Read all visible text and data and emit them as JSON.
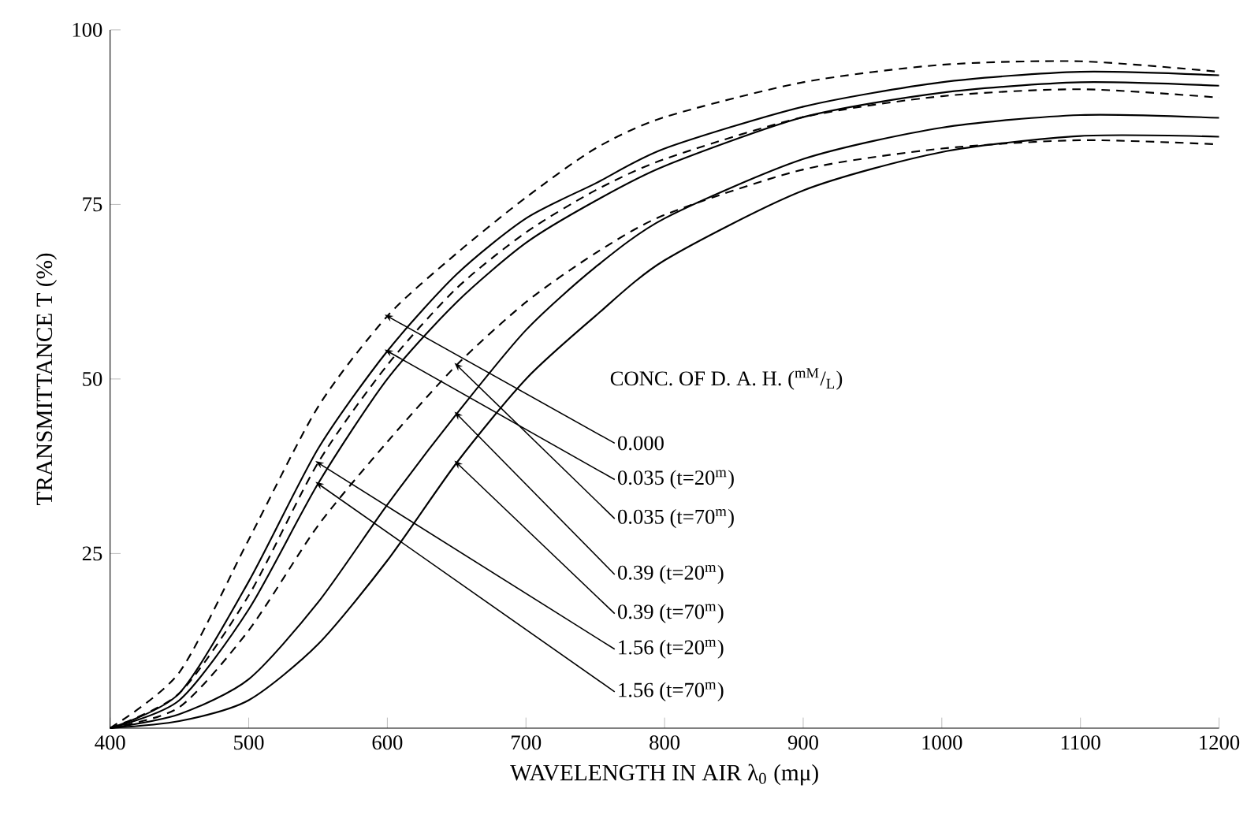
{
  "chart_data": {
    "type": "line",
    "xlabel": "WAVELENGTH IN AIR λ$_{0}$ (mμ)",
    "ylabel": "TRANSMITTANCE T (%)",
    "legend_title": "CONC. OF D. A. H. ($^{mM}$/$_{L}$)",
    "x": [
      400,
      450,
      500,
      550,
      600,
      650,
      700,
      750,
      800,
      900,
      1000,
      1100,
      1200
    ],
    "xlim": [
      400,
      1200
    ],
    "ylim": [
      0,
      100
    ],
    "xticks": [
      400,
      500,
      600,
      700,
      800,
      900,
      1000,
      1100,
      1200
    ],
    "yticks": [
      25,
      50,
      75,
      100
    ],
    "series": [
      {
        "name": "0.000",
        "color": "#000000",
        "line_style": "dashed",
        "values": [
          0,
          8,
          27,
          46,
          59,
          68,
          76,
          83,
          87.5,
          92.5,
          95,
          95.5,
          94
        ]
      },
      {
        "name": "0.035 (t=20$^{m}$)",
        "color": "#000000",
        "line_style": "solid",
        "values": [
          0,
          5,
          21,
          40,
          54,
          65,
          73,
          78,
          83,
          89,
          92.5,
          94,
          93.5
        ]
      },
      {
        "name": "0.035 (t=70$^{m}$)",
        "color": "#000000",
        "line_style": "dashed",
        "values": [
          0,
          3,
          14,
          29,
          41,
          52,
          61,
          68,
          73.5,
          80,
          83,
          84.2,
          83.6
        ]
      },
      {
        "name": "0.39 (t=20$^{m}$)",
        "color": "#000000",
        "line_style": "solid",
        "values": [
          0,
          2,
          7,
          18,
          32,
          45,
          57,
          66,
          73,
          81.5,
          86,
          87.8,
          87.4
        ]
      },
      {
        "name": "0.39 (t=70$^{m}$)",
        "color": "#000000",
        "line_style": "solid",
        "values": [
          0,
          1,
          4,
          12,
          24,
          38,
          50,
          59,
          67,
          77,
          82.5,
          84.8,
          84.7
        ]
      },
      {
        "name": "1.56 (t=20$^{m}$)",
        "color": "#000000",
        "line_style": "dashed",
        "values": [
          0,
          5,
          19,
          38,
          52,
          63,
          71,
          77,
          81.5,
          87.5,
          90.5,
          91.5,
          90.3
        ]
      },
      {
        "name": "1.56 (t=70$^{m}$)",
        "color": "#000000",
        "line_style": "solid",
        "values": [
          0,
          4,
          17,
          35,
          50,
          61,
          69.5,
          75.5,
          80.5,
          87.5,
          91,
          92.5,
          92
        ]
      }
    ]
  }
}
